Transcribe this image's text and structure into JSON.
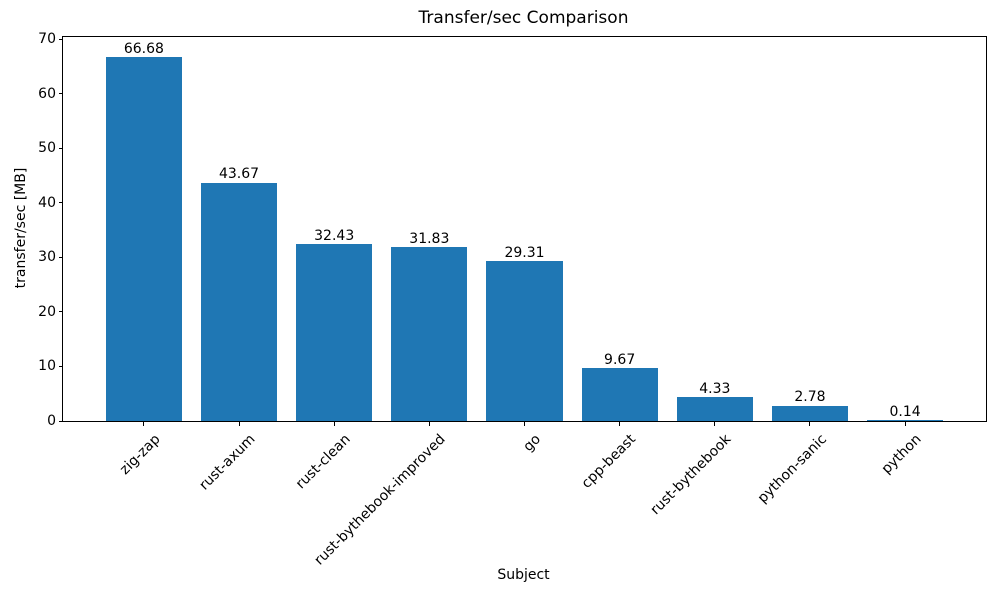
{
  "chart_data": {
    "type": "bar",
    "title": "Transfer/sec Comparison",
    "xlabel": "Subject",
    "ylabel": "transfer/sec [MB]",
    "categories": [
      "zig-zap",
      "rust-axum",
      "rust-clean",
      "rust-bythebook-improved",
      "go",
      "cpp-beast",
      "rust-bythebook",
      "python-sanic",
      "python"
    ],
    "values": [
      66.68,
      43.67,
      32.43,
      31.83,
      29.31,
      9.67,
      4.33,
      2.78,
      0.14
    ],
    "value_labels": [
      "66.68",
      "43.67",
      "32.43",
      "31.83",
      "29.31",
      "9.67",
      "4.33",
      "2.78",
      "0.14"
    ],
    "ylim": [
      0,
      70
    ],
    "yticks": [
      0,
      10,
      20,
      30,
      40,
      50,
      60,
      70
    ],
    "bar_color": "#1f77b4",
    "spine_color": "#000000",
    "text_color": "#000000",
    "background_color": "#ffffff",
    "grid": false,
    "legend": null,
    "x_tick_label_rotation_deg": 45
  }
}
